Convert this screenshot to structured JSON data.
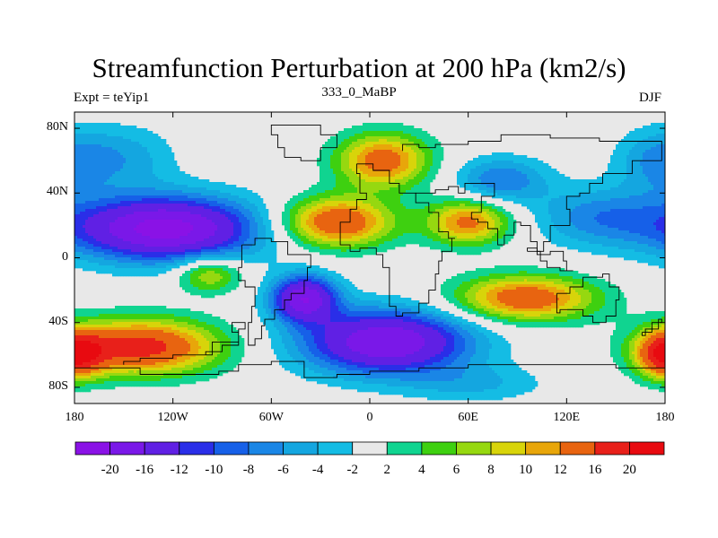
{
  "header": {
    "title": "Streamfunction Perturbation at 200 hPa (km2/s)",
    "left_string": "Expt = teYip1",
    "center_string": "333_0_MaBP",
    "right_string": "DJF"
  },
  "map": {
    "projection": "cylindrical-equidistant",
    "lon_range": [
      -180,
      180
    ],
    "lat_range": [
      -90,
      90
    ],
    "y_ticks": [
      {
        "lat": 80,
        "label": "80N"
      },
      {
        "lat": 40,
        "label": "40N"
      },
      {
        "lat": 0,
        "label": "0"
      },
      {
        "lat": -40,
        "label": "40S"
      },
      {
        "lat": -80,
        "label": "80S"
      }
    ],
    "x_ticks": [
      {
        "lon": -180,
        "label": "180"
      },
      {
        "lon": -120,
        "label": "120W"
      },
      {
        "lon": -60,
        "label": "60W"
      },
      {
        "lon": 0,
        "label": "0"
      },
      {
        "lon": 60,
        "label": "60E"
      },
      {
        "lon": 120,
        "label": "120E"
      },
      {
        "lon": 180,
        "label": "180"
      }
    ],
    "background_color": "#e8e8e8",
    "features": [
      {
        "lon": -150,
        "lat": 62,
        "amp": -5,
        "sx": 22,
        "sy": 14
      },
      {
        "lon": 175,
        "lat": 60,
        "amp": -6,
        "sx": 18,
        "sy": 14
      },
      {
        "lon": -125,
        "lat": 18,
        "amp": -22,
        "sx": 40,
        "sy": 14
      },
      {
        "lon": -98,
        "lat": -10,
        "amp": 9,
        "sx": 14,
        "sy": 8
      },
      {
        "lon": -40,
        "lat": -25,
        "amp": -19,
        "sx": 14,
        "sy": 10
      },
      {
        "lon": 10,
        "lat": -52,
        "amp": -20,
        "sx": 36,
        "sy": 14
      },
      {
        "lon": -140,
        "lat": -55,
        "amp": 18,
        "sx": 34,
        "sy": 12
      },
      {
        "lon": 180,
        "lat": -60,
        "amp": 16,
        "sx": 12,
        "sy": 10
      },
      {
        "lon": -20,
        "lat": 22,
        "amp": 16,
        "sx": 24,
        "sy": 11
      },
      {
        "lon": 8,
        "lat": 60,
        "amp": 14,
        "sx": 20,
        "sy": 12
      },
      {
        "lon": 60,
        "lat": 22,
        "amp": 13,
        "sx": 18,
        "sy": 10
      },
      {
        "lon": 95,
        "lat": -25,
        "amp": 15,
        "sx": 30,
        "sy": 10
      },
      {
        "lon": 80,
        "lat": 48,
        "amp": -8,
        "sx": 20,
        "sy": 10
      },
      {
        "lon": 140,
        "lat": 25,
        "amp": -7,
        "sx": 28,
        "sy": 13
      },
      {
        "lon": 65,
        "lat": -78,
        "amp": -4,
        "sx": 30,
        "sy": 8
      }
    ],
    "coastline_color": "#000000"
  },
  "colorbar": {
    "levels": [
      "-20",
      "-16",
      "-12",
      "-10",
      "-8",
      "-6",
      "-4",
      "-2",
      "2",
      "4",
      "6",
      "8",
      "10",
      "12",
      "16",
      "20"
    ],
    "level_values": [
      -20,
      -16,
      -12,
      -10,
      -8,
      -6,
      -4,
      -2,
      2,
      4,
      6,
      8,
      10,
      12,
      16,
      20
    ],
    "colors": [
      "#8a12e6",
      "#7a18e8",
      "#6020e4",
      "#2a2ee8",
      "#1660e8",
      "#1a86e6",
      "#14a6e0",
      "#14bce4",
      "#e8e8e8",
      "#10d490",
      "#3ed010",
      "#96d810",
      "#d8d40a",
      "#e8a60a",
      "#e86410",
      "#e8201a",
      "#e80a10"
    ]
  }
}
